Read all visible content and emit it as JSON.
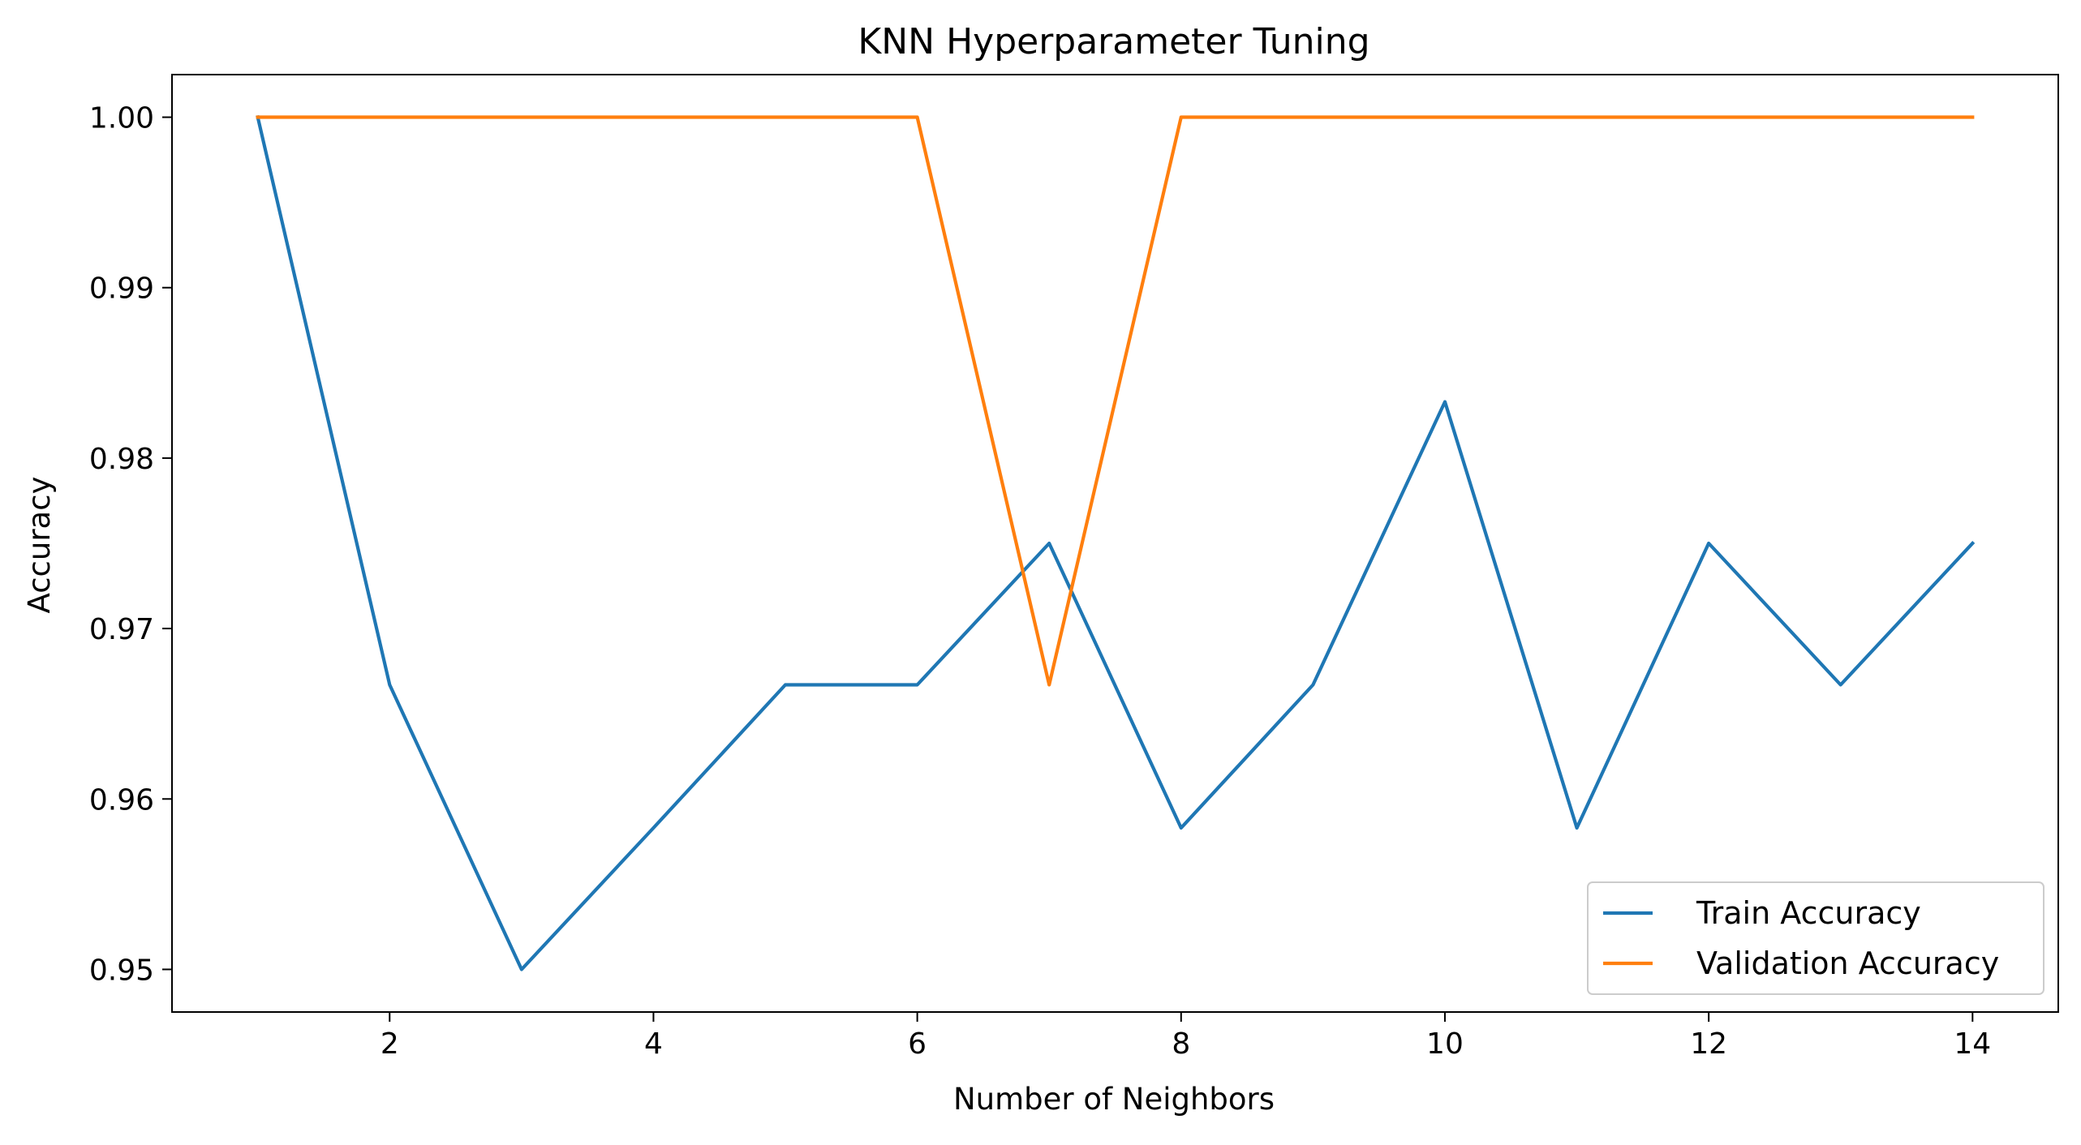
{
  "chart_data": {
    "type": "line",
    "title": "KNN Hyperparameter Tuning",
    "xlabel": "Number of Neighbors",
    "ylabel": "Accuracy",
    "x": [
      1,
      2,
      3,
      4,
      5,
      6,
      7,
      8,
      9,
      10,
      11,
      12,
      13,
      14
    ],
    "xlim": [
      0.35,
      14.65
    ],
    "ylim": [
      0.9475,
      1.0025
    ],
    "xticks": [
      2,
      4,
      6,
      8,
      10,
      12,
      14
    ],
    "xtick_labels": [
      "2",
      "4",
      "6",
      "8",
      "10",
      "12",
      "14"
    ],
    "yticks": [
      0.95,
      0.96,
      0.97,
      0.98,
      0.99,
      1.0
    ],
    "ytick_labels": [
      "0.95",
      "0.96",
      "0.97",
      "0.98",
      "0.99",
      "1.00"
    ],
    "grid": false,
    "legend_position": "bottom-right",
    "series": [
      {
        "name": "Train Accuracy",
        "color": "#1f77b4",
        "values": [
          1.0,
          0.9667,
          0.95,
          0.9583,
          0.9667,
          0.9667,
          0.975,
          0.9583,
          0.9667,
          0.9833,
          0.9583,
          0.975,
          0.9667,
          0.975
        ]
      },
      {
        "name": "Validation Accuracy",
        "color": "#ff7f0e",
        "values": [
          1.0,
          1.0,
          1.0,
          1.0,
          1.0,
          1.0,
          0.9667,
          1.0,
          1.0,
          1.0,
          1.0,
          1.0,
          1.0,
          1.0
        ]
      }
    ]
  }
}
